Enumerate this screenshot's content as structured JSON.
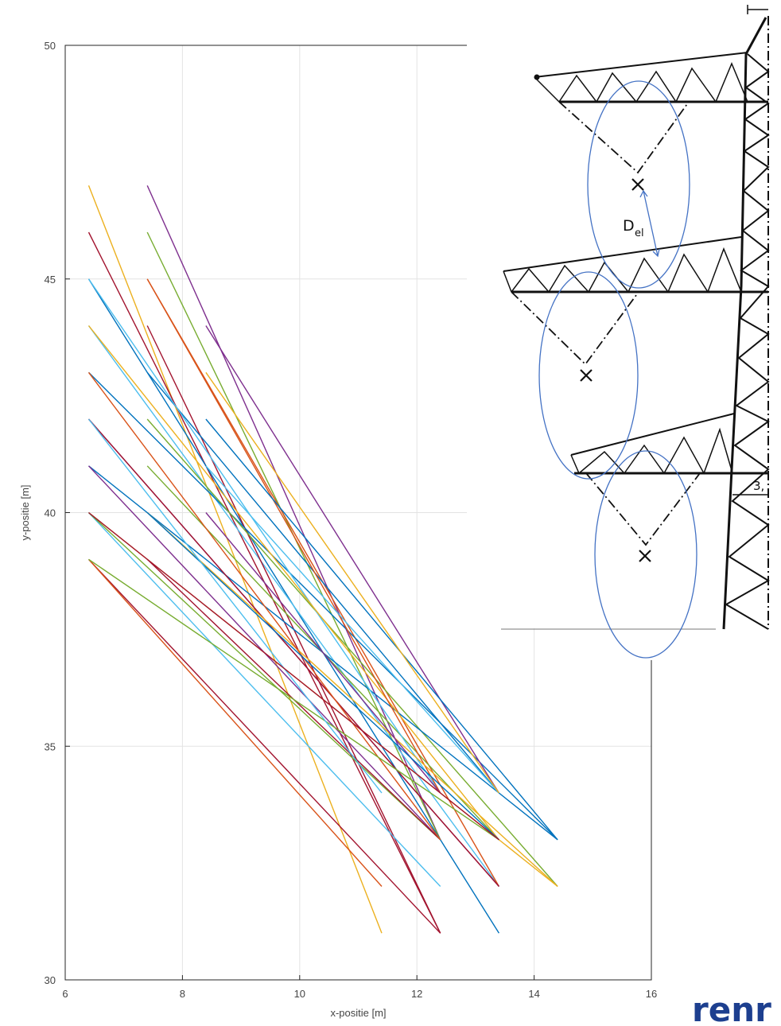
{
  "chart_data": {
    "type": "line",
    "title": "",
    "xlabel": "x-positie [m]",
    "ylabel": "y-positie [m]",
    "xlim": [
      6,
      16
    ],
    "ylim": [
      30,
      50
    ],
    "xticks": [
      6,
      8,
      10,
      12,
      14,
      16
    ],
    "yticks": [
      30,
      35,
      40,
      45,
      50
    ],
    "grid": true,
    "legend": "none",
    "series": [
      {
        "color": "#ecb01f",
        "x": [
          6.4,
          11.4
        ],
        "y": [
          47,
          31
        ]
      },
      {
        "color": "#a2142f",
        "x": [
          6.4,
          12.4
        ],
        "y": [
          46,
          31
        ]
      },
      {
        "color": "#7e2f8e",
        "x": [
          7.4,
          12.4
        ],
        "y": [
          47,
          33
        ]
      },
      {
        "color": "#77ac30",
        "x": [
          7.4,
          12.4
        ],
        "y": [
          46,
          33
        ]
      },
      {
        "color": "#0072bd",
        "x": [
          6.4,
          13.4
        ],
        "y": [
          45,
          31
        ]
      },
      {
        "color": "#4dbeee",
        "x": [
          6.4,
          13.4
        ],
        "y": [
          44,
          32
        ]
      },
      {
        "color": "#d95319",
        "x": [
          7.4,
          13.4
        ],
        "y": [
          45,
          32
        ]
      },
      {
        "color": "#a2142f",
        "x": [
          7.4,
          12.4
        ],
        "y": [
          44,
          31
        ]
      },
      {
        "color": "#0072bd",
        "x": [
          6.4,
          14.4
        ],
        "y": [
          43,
          33
        ]
      },
      {
        "color": "#7e2f8e",
        "x": [
          6.4,
          13.4
        ],
        "y": [
          42,
          32
        ]
      },
      {
        "color": "#7e2f8e",
        "x": [
          8.4,
          13.4
        ],
        "y": [
          44,
          34
        ]
      },
      {
        "color": "#77ac30",
        "x": [
          7.4,
          14.4
        ],
        "y": [
          42,
          32
        ]
      },
      {
        "color": "#0072bd",
        "x": [
          6.4,
          14.4
        ],
        "y": [
          41,
          33
        ]
      },
      {
        "color": "#ecb01f",
        "x": [
          6.4,
          14.4
        ],
        "y": [
          40,
          32
        ]
      },
      {
        "color": "#a2142f",
        "x": [
          6.4,
          12.4
        ],
        "y": [
          39,
          31
        ]
      },
      {
        "color": "#4dbeee",
        "x": [
          6.4,
          12.4
        ],
        "y": [
          40,
          32
        ]
      },
      {
        "color": "#d95319",
        "x": [
          6.4,
          11.4
        ],
        "y": [
          39,
          32
        ]
      },
      {
        "color": "#77ac30",
        "x": [
          7.4,
          13.4
        ],
        "y": [
          41,
          33
        ]
      },
      {
        "color": "#0072bd",
        "x": [
          7.4,
          13.4
        ],
        "y": [
          43,
          34
        ]
      },
      {
        "color": "#4dbeee",
        "x": [
          6.4,
          12.4
        ],
        "y": [
          45,
          34
        ]
      },
      {
        "color": "#ecb01f",
        "x": [
          6.4,
          13.4
        ],
        "y": [
          44,
          33
        ]
      },
      {
        "color": "#a2142f",
        "x": [
          6.4,
          13.4
        ],
        "y": [
          42,
          32
        ]
      },
      {
        "color": "#d95319",
        "x": [
          7.4,
          12.4
        ],
        "y": [
          45,
          34
        ]
      },
      {
        "color": "#7e2f8e",
        "x": [
          6.4,
          12.4
        ],
        "y": [
          41,
          33
        ]
      },
      {
        "color": "#77ac30",
        "x": [
          6.4,
          12.4
        ],
        "y": [
          40,
          33
        ]
      },
      {
        "color": "#0072bd",
        "x": [
          8.4,
          14.4
        ],
        "y": [
          42,
          33
        ]
      },
      {
        "color": "#4dbeee",
        "x": [
          8.4,
          13.4
        ],
        "y": [
          41,
          34
        ]
      },
      {
        "color": "#ecb01f",
        "x": [
          7.4,
          14.4
        ],
        "y": [
          40,
          32
        ]
      },
      {
        "color": "#a2142f",
        "x": [
          7.4,
          12.4
        ],
        "y": [
          39,
          33
        ]
      },
      {
        "color": "#d95319",
        "x": [
          6.4,
          12.4
        ],
        "y": [
          43,
          33
        ]
      },
      {
        "color": "#7e2f8e",
        "x": [
          8.4,
          12.4
        ],
        "y": [
          40,
          34
        ]
      },
      {
        "color": "#77ac30",
        "x": [
          6.4,
          13.4
        ],
        "y": [
          39,
          33
        ]
      },
      {
        "color": "#0072bd",
        "x": [
          7.4,
          13.4
        ],
        "y": [
          40,
          33
        ]
      },
      {
        "color": "#4dbeee",
        "x": [
          6.4,
          11.4
        ],
        "y": [
          42,
          34
        ]
      },
      {
        "color": "#ecb01f",
        "x": [
          8.4,
          13.4
        ],
        "y": [
          43,
          34
        ]
      },
      {
        "color": "#a2142f",
        "x": [
          6.4,
          13.4
        ],
        "y": [
          40,
          33
        ]
      }
    ]
  },
  "inset": {
    "del_label": "D",
    "del_sub": "el",
    "dimension_text": "3,",
    "line_color": "#4472c4"
  },
  "logo_text": "renr",
  "colors": {
    "grid": "#e3e3e3",
    "axis": "#262626",
    "structure": "#111111",
    "ellipse": "#4472c4",
    "logo": "#1d3f8f"
  }
}
